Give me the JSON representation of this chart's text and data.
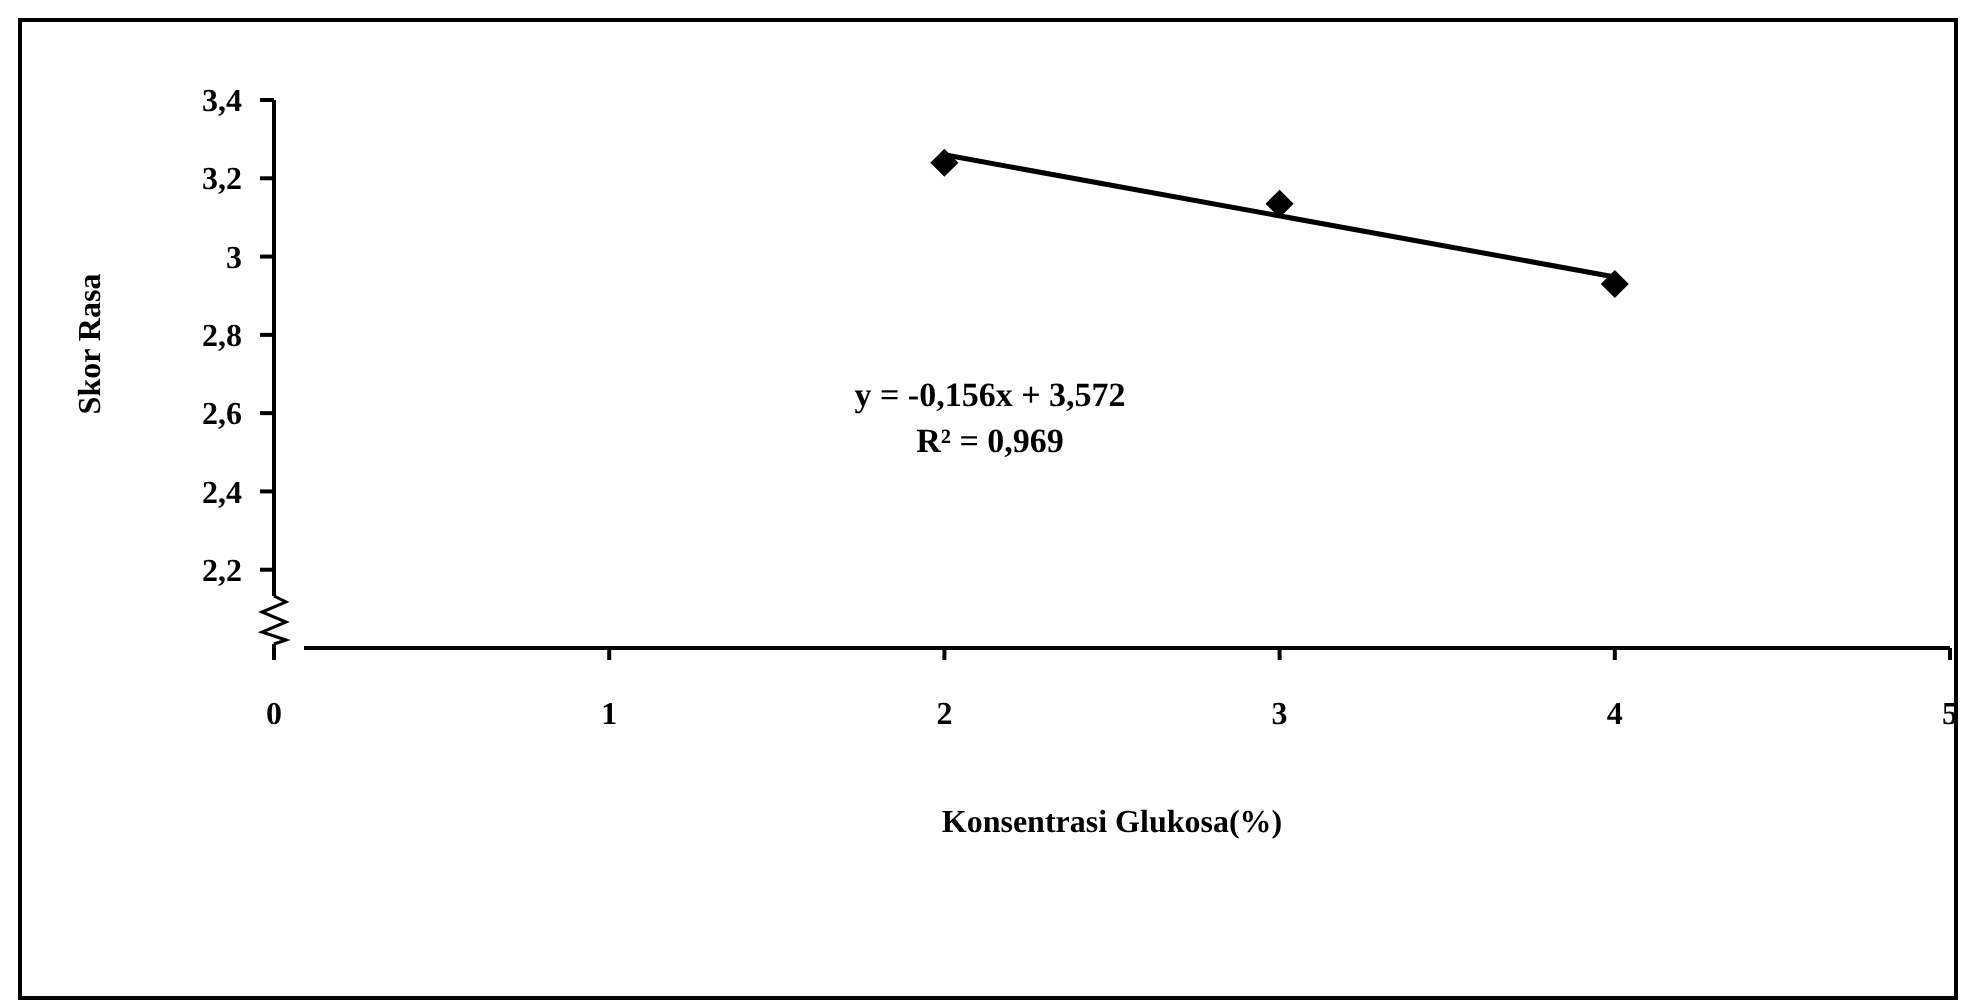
{
  "chart_data": {
    "type": "scatter",
    "xlabel": "Konsentrasi Glukosa(%)",
    "ylabel": "Skor Rasa",
    "x": [
      2,
      3,
      4
    ],
    "series": [
      {
        "color": "#000000",
        "marker": "diamond",
        "values": [
          3.24,
          3.135,
          2.93
        ]
      },
      {
        "type": "line",
        "color": "#000000",
        "marker": "none",
        "line_style": "solid",
        "x": [
          2,
          4
        ],
        "values": [
          3.26,
          2.948
        ]
      }
    ],
    "xlim": [
      0,
      5
    ],
    "xticks": [
      0,
      1,
      2,
      3,
      4,
      5
    ],
    "ylim": [
      2.0,
      3.4
    ],
    "yticks": [
      {
        "value": 2.2,
        "label": "2,2"
      },
      {
        "value": 2.4,
        "label": "2,4"
      },
      {
        "value": 2.6,
        "label": "2,6"
      },
      {
        "value": 2.8,
        "label": "2,8"
      },
      {
        "value": 3,
        "label": "3"
      },
      {
        "value": 3.2,
        "label": "3,2"
      },
      {
        "value": 3.4,
        "label": "3,4"
      }
    ],
    "grid": false,
    "annotations": [
      "y = -0,156x + 3,572",
      "R² = 0,969"
    ]
  }
}
